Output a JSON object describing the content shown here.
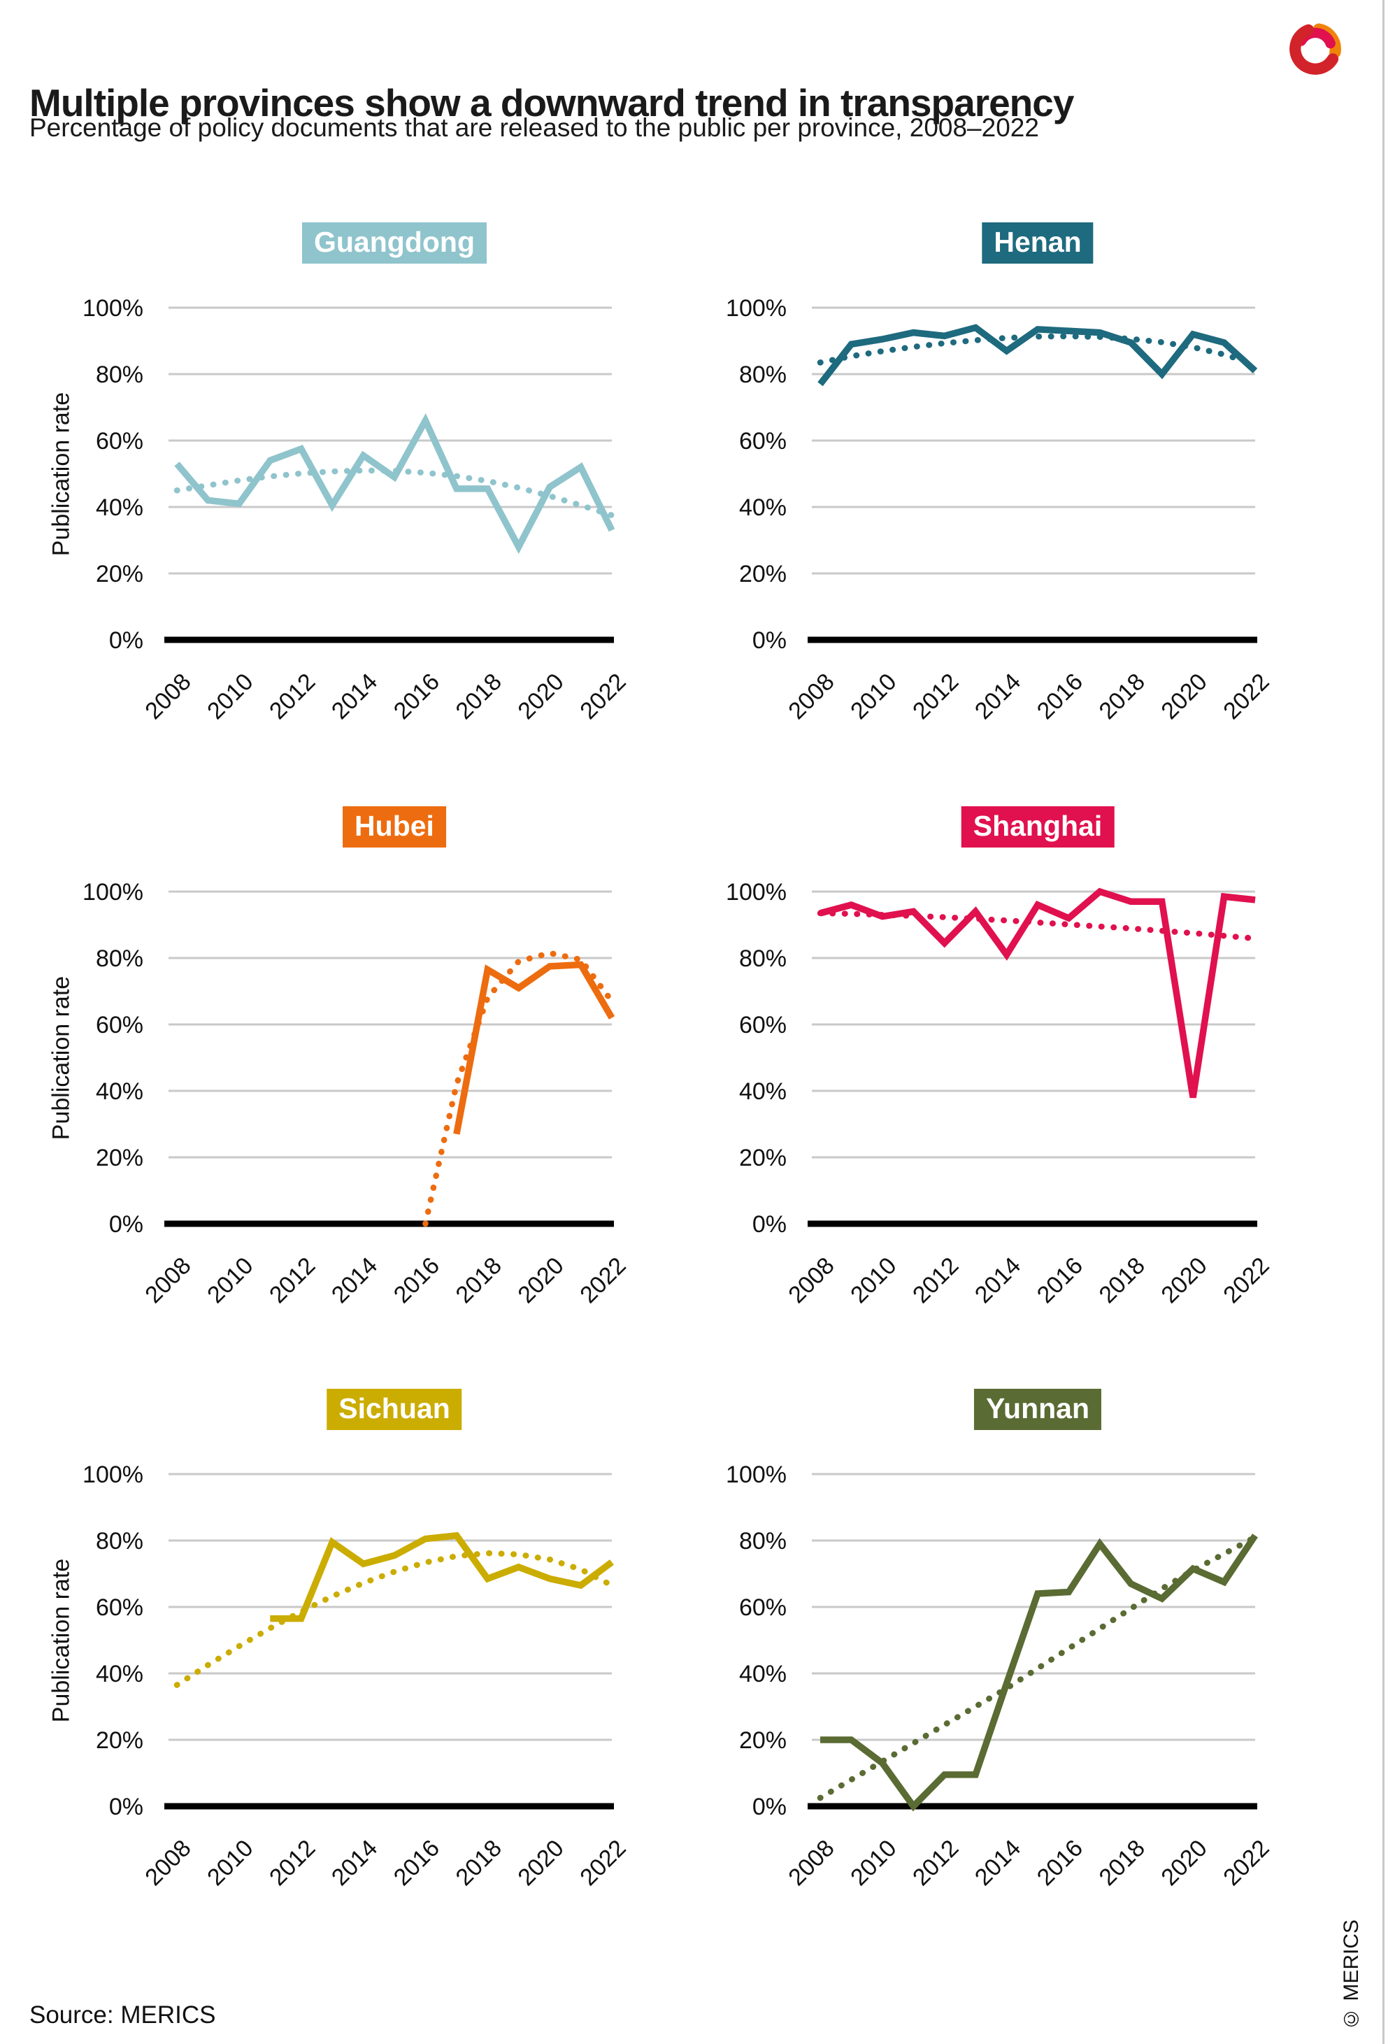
{
  "header": {
    "title": "Multiple provinces show a downward trend in transparency",
    "subtitle": "Percentage of policy documents that are released to the public per province, 2008–2022"
  },
  "footer": {
    "source": "Source: MERICS",
    "copyright": "© MERICS"
  },
  "axis": {
    "y_label": "Publication rate",
    "y_ticks": [
      "100%",
      "80%",
      "60%",
      "40%",
      "20%",
      "0%"
    ],
    "y_tick_values": [
      100,
      80,
      60,
      40,
      20,
      0
    ],
    "x_tick_years": [
      2008,
      2010,
      2012,
      2014,
      2016,
      2018,
      2020,
      2022
    ]
  },
  "colors": {
    "guangdong": "#8FC4CC",
    "henan": "#1E6A7E",
    "hubei": "#ED6C0F",
    "shanghai": "#E0114E",
    "sichuan": "#CBAC00",
    "yunnan": "#5A6B33",
    "gridline": "#c9c9c9",
    "axis_line": "#000000",
    "text": "#111111"
  },
  "chart_data": [
    {
      "type": "line",
      "title": "Guangdong",
      "color": "#8FC4CC",
      "ylabel": "Publication rate",
      "ylim": [
        0,
        100
      ],
      "grid": "horizontal",
      "legend": "none",
      "x": [
        2008,
        2009,
        2010,
        2011,
        2012,
        2013,
        2014,
        2015,
        2016,
        2017,
        2018,
        2019,
        2020,
        2021,
        2022
      ],
      "series": [
        {
          "name": "Publication rate",
          "style": "solid",
          "values": [
            53,
            42,
            41,
            54,
            57.5,
            40.5,
            55.5,
            49,
            66,
            45.5,
            45.5,
            28,
            46,
            52,
            33
          ]
        },
        {
          "name": "Trend",
          "style": "dotted",
          "values": [
            45,
            46.5,
            48,
            49.2,
            50.1,
            50.7,
            51,
            50.9,
            50.3,
            49.3,
            47.8,
            45.8,
            43.3,
            40.5,
            37.5
          ]
        }
      ]
    },
    {
      "type": "line",
      "title": "Henan",
      "color": "#1E6A7E",
      "ylabel": "Publication rate",
      "ylim": [
        0,
        100
      ],
      "grid": "horizontal",
      "legend": "none",
      "x": [
        2008,
        2009,
        2010,
        2011,
        2012,
        2013,
        2014,
        2015,
        2016,
        2017,
        2018,
        2019,
        2020,
        2021,
        2022
      ],
      "series": [
        {
          "name": "Publication rate",
          "style": "solid",
          "values": [
            77,
            89,
            90.5,
            92.5,
            91.5,
            94,
            87,
            93.5,
            93,
            92.5,
            89.5,
            80,
            92,
            89.5,
            81
          ]
        },
        {
          "name": "Trend",
          "style": "dotted",
          "values": [
            83.5,
            85.4,
            86.9,
            88.2,
            89.3,
            90.2,
            90.9,
            91.3,
            91.4,
            91.2,
            90.6,
            89.6,
            88.1,
            85.9,
            83
          ]
        }
      ]
    },
    {
      "type": "line",
      "title": "Hubei",
      "color": "#ED6C0F",
      "ylabel": "Publication rate",
      "ylim": [
        0,
        100
      ],
      "grid": "horizontal",
      "legend": "none",
      "x": [
        2008,
        2009,
        2010,
        2011,
        2012,
        2013,
        2014,
        2015,
        2016,
        2017,
        2018,
        2019,
        2020,
        2021,
        2022
      ],
      "series": [
        {
          "name": "Publication rate",
          "style": "solid",
          "values": [
            null,
            null,
            null,
            null,
            null,
            null,
            null,
            null,
            null,
            27,
            76.5,
            71,
            77.5,
            78,
            62
          ]
        },
        {
          "name": "Trend",
          "style": "dotted",
          "values": [
            null,
            null,
            null,
            null,
            null,
            null,
            null,
            null,
            0,
            42,
            68,
            79,
            81.5,
            79.5,
            67
          ]
        }
      ]
    },
    {
      "type": "line",
      "title": "Shanghai",
      "color": "#E0114E",
      "ylabel": "Publication rate",
      "ylim": [
        0,
        100
      ],
      "grid": "horizontal",
      "legend": "none",
      "x": [
        2008,
        2009,
        2010,
        2011,
        2012,
        2013,
        2014,
        2015,
        2016,
        2017,
        2018,
        2019,
        2020,
        2021,
        2022
      ],
      "series": [
        {
          "name": "Publication rate",
          "style": "solid",
          "values": [
            93.5,
            96,
            92.5,
            94,
            84.5,
            94,
            81,
            96,
            92,
            100,
            97,
            97,
            38,
            98.5,
            97.5
          ]
        },
        {
          "name": "Trend",
          "style": "dotted",
          "values": [
            93.5,
            93.3,
            93,
            92.7,
            92.3,
            91.8,
            91.3,
            90.7,
            90.1,
            89.5,
            88.9,
            88.2,
            87.5,
            86.7,
            85.9
          ]
        }
      ]
    },
    {
      "type": "line",
      "title": "Sichuan",
      "color": "#CBAC00",
      "ylabel": "Publication rate",
      "ylim": [
        0,
        100
      ],
      "grid": "horizontal",
      "legend": "none",
      "x": [
        2008,
        2009,
        2010,
        2011,
        2012,
        2013,
        2014,
        2015,
        2016,
        2017,
        2018,
        2019,
        2020,
        2021,
        2022
      ],
      "series": [
        {
          "name": "Publication rate",
          "style": "solid",
          "values": [
            null,
            null,
            null,
            56.5,
            56.5,
            79.5,
            73,
            75.5,
            80.5,
            81.5,
            68.5,
            72,
            68.5,
            66.5,
            73.5
          ]
        },
        {
          "name": "Trend",
          "style": "dotted",
          "values": [
            36.5,
            42.5,
            48.2,
            53.6,
            58.6,
            63.2,
            67.2,
            70.6,
            73.4,
            75.3,
            76.2,
            75.8,
            74.3,
            71.3,
            66.5
          ]
        }
      ]
    },
    {
      "type": "line",
      "title": "Yunnan",
      "color": "#5A6B33",
      "ylabel": "Publication rate",
      "ylim": [
        0,
        100
      ],
      "grid": "horizontal",
      "legend": "none",
      "x": [
        2008,
        2009,
        2010,
        2011,
        2012,
        2013,
        2014,
        2015,
        2016,
        2017,
        2018,
        2019,
        2020,
        2021,
        2022
      ],
      "series": [
        {
          "name": "Publication rate",
          "style": "solid",
          "values": [
            20,
            20,
            13,
            0,
            9.5,
            9.5,
            37,
            64,
            64.5,
            79,
            67,
            62.5,
            71.5,
            67.5,
            81.5
          ]
        },
        {
          "name": "Trend",
          "style": "dotted",
          "values": [
            2.5,
            8,
            13.5,
            19,
            24.5,
            30,
            35.5,
            41.5,
            47.5,
            53.5,
            59.5,
            65.5,
            71,
            76,
            81
          ]
        }
      ]
    }
  ]
}
